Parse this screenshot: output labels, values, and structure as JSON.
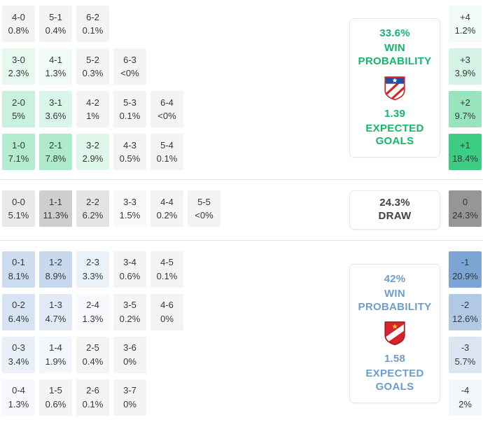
{
  "chart_data": {
    "type": "heatmap",
    "title": "Correct score probability matrix with win/draw probabilities and expected goals",
    "legend_position": "right",
    "colors": {
      "cell_floor": "#f4f4f4",
      "divider": "#e4e6e8",
      "home_accent": "#12b76a",
      "draw_accent": "#3f4448",
      "away_accent": "#6d9ecb"
    },
    "sections": [
      {
        "id": "home-win",
        "max_pct": 18.4,
        "cell_rgb": [
          60,
          205,
          130
        ],
        "rows": [
          [
            {
              "score": "4-0",
              "pct": "0.8%"
            },
            {
              "score": "5-1",
              "pct": "0.4%"
            },
            {
              "score": "6-2",
              "pct": "0.1%"
            }
          ],
          [
            {
              "score": "3-0",
              "pct": "2.3%"
            },
            {
              "score": "4-1",
              "pct": "1.3%"
            },
            {
              "score": "5-2",
              "pct": "0.3%"
            },
            {
              "score": "6-3",
              "pct": "<0%"
            }
          ],
          [
            {
              "score": "2-0",
              "pct": "5%"
            },
            {
              "score": "3-1",
              "pct": "3.6%"
            },
            {
              "score": "4-2",
              "pct": "1%"
            },
            {
              "score": "5-3",
              "pct": "0.1%"
            },
            {
              "score": "6-4",
              "pct": "<0%"
            }
          ],
          [
            {
              "score": "1-0",
              "pct": "7.1%"
            },
            {
              "score": "2-1",
              "pct": "7.8%"
            },
            {
              "score": "3-2",
              "pct": "2.9%"
            },
            {
              "score": "4-3",
              "pct": "0.5%"
            },
            {
              "score": "5-4",
              "pct": "0.1%"
            }
          ]
        ],
        "diffs": [
          {
            "label": "+4",
            "pct": "1.2%"
          },
          {
            "label": "+3",
            "pct": "3.9%"
          },
          {
            "label": "+2",
            "pct": "9.7%"
          },
          {
            "label": "+1",
            "pct": "18.4%"
          }
        ],
        "card": {
          "value": "33.6%",
          "title": "WIN PROBABILITY",
          "metric": "1.39",
          "metric_label": "EXPECTED GOALS",
          "color": "#12b76a",
          "crest": "home-team-crest"
        }
      },
      {
        "id": "draw",
        "max_pct": 24.3,
        "cell_rgb": [
          150,
          150,
          150
        ],
        "rows": [
          [
            {
              "score": "0-0",
              "pct": "5.1%"
            },
            {
              "score": "1-1",
              "pct": "11.3%"
            },
            {
              "score": "2-2",
              "pct": "6.2%"
            },
            {
              "score": "3-3",
              "pct": "1.5%"
            },
            {
              "score": "4-4",
              "pct": "0.2%"
            },
            {
              "score": "5-5",
              "pct": "<0%"
            }
          ]
        ],
        "diffs": [
          {
            "label": "0",
            "pct": "24.3%"
          }
        ],
        "card": {
          "value": "24.3%",
          "title": "DRAW",
          "color": "#3f4448"
        }
      },
      {
        "id": "away-win",
        "max_pct": 20.9,
        "cell_rgb": [
          125,
          165,
          212
        ],
        "rows": [
          [
            {
              "score": "0-1",
              "pct": "8.1%"
            },
            {
              "score": "1-2",
              "pct": "8.9%"
            },
            {
              "score": "2-3",
              "pct": "3.3%"
            },
            {
              "score": "3-4",
              "pct": "0.6%"
            },
            {
              "score": "4-5",
              "pct": "0.1%"
            }
          ],
          [
            {
              "score": "0-2",
              "pct": "6.4%"
            },
            {
              "score": "1-3",
              "pct": "4.7%"
            },
            {
              "score": "2-4",
              "pct": "1.3%"
            },
            {
              "score": "3-5",
              "pct": "0.2%"
            },
            {
              "score": "4-6",
              "pct": "0%"
            }
          ],
          [
            {
              "score": "0-3",
              "pct": "3.4%"
            },
            {
              "score": "1-4",
              "pct": "1.9%"
            },
            {
              "score": "2-5",
              "pct": "0.4%"
            },
            {
              "score": "3-6",
              "pct": "0%"
            }
          ],
          [
            {
              "score": "0-4",
              "pct": "1.3%"
            },
            {
              "score": "1-5",
              "pct": "0.6%"
            },
            {
              "score": "2-6",
              "pct": "0.1%"
            },
            {
              "score": "3-7",
              "pct": "0%"
            }
          ]
        ],
        "diffs": [
          {
            "label": "-1",
            "pct": "20.9%"
          },
          {
            "label": "-2",
            "pct": "12.6%"
          },
          {
            "label": "-3",
            "pct": "5.7%"
          },
          {
            "label": "-4",
            "pct": "2%"
          }
        ],
        "card": {
          "value": "42%",
          "title": "WIN PROBABILITY",
          "metric": "1.58",
          "metric_label": "EXPECTED GOALS",
          "color": "#6d9ecb",
          "crest": "away-team-crest"
        }
      }
    ]
  }
}
